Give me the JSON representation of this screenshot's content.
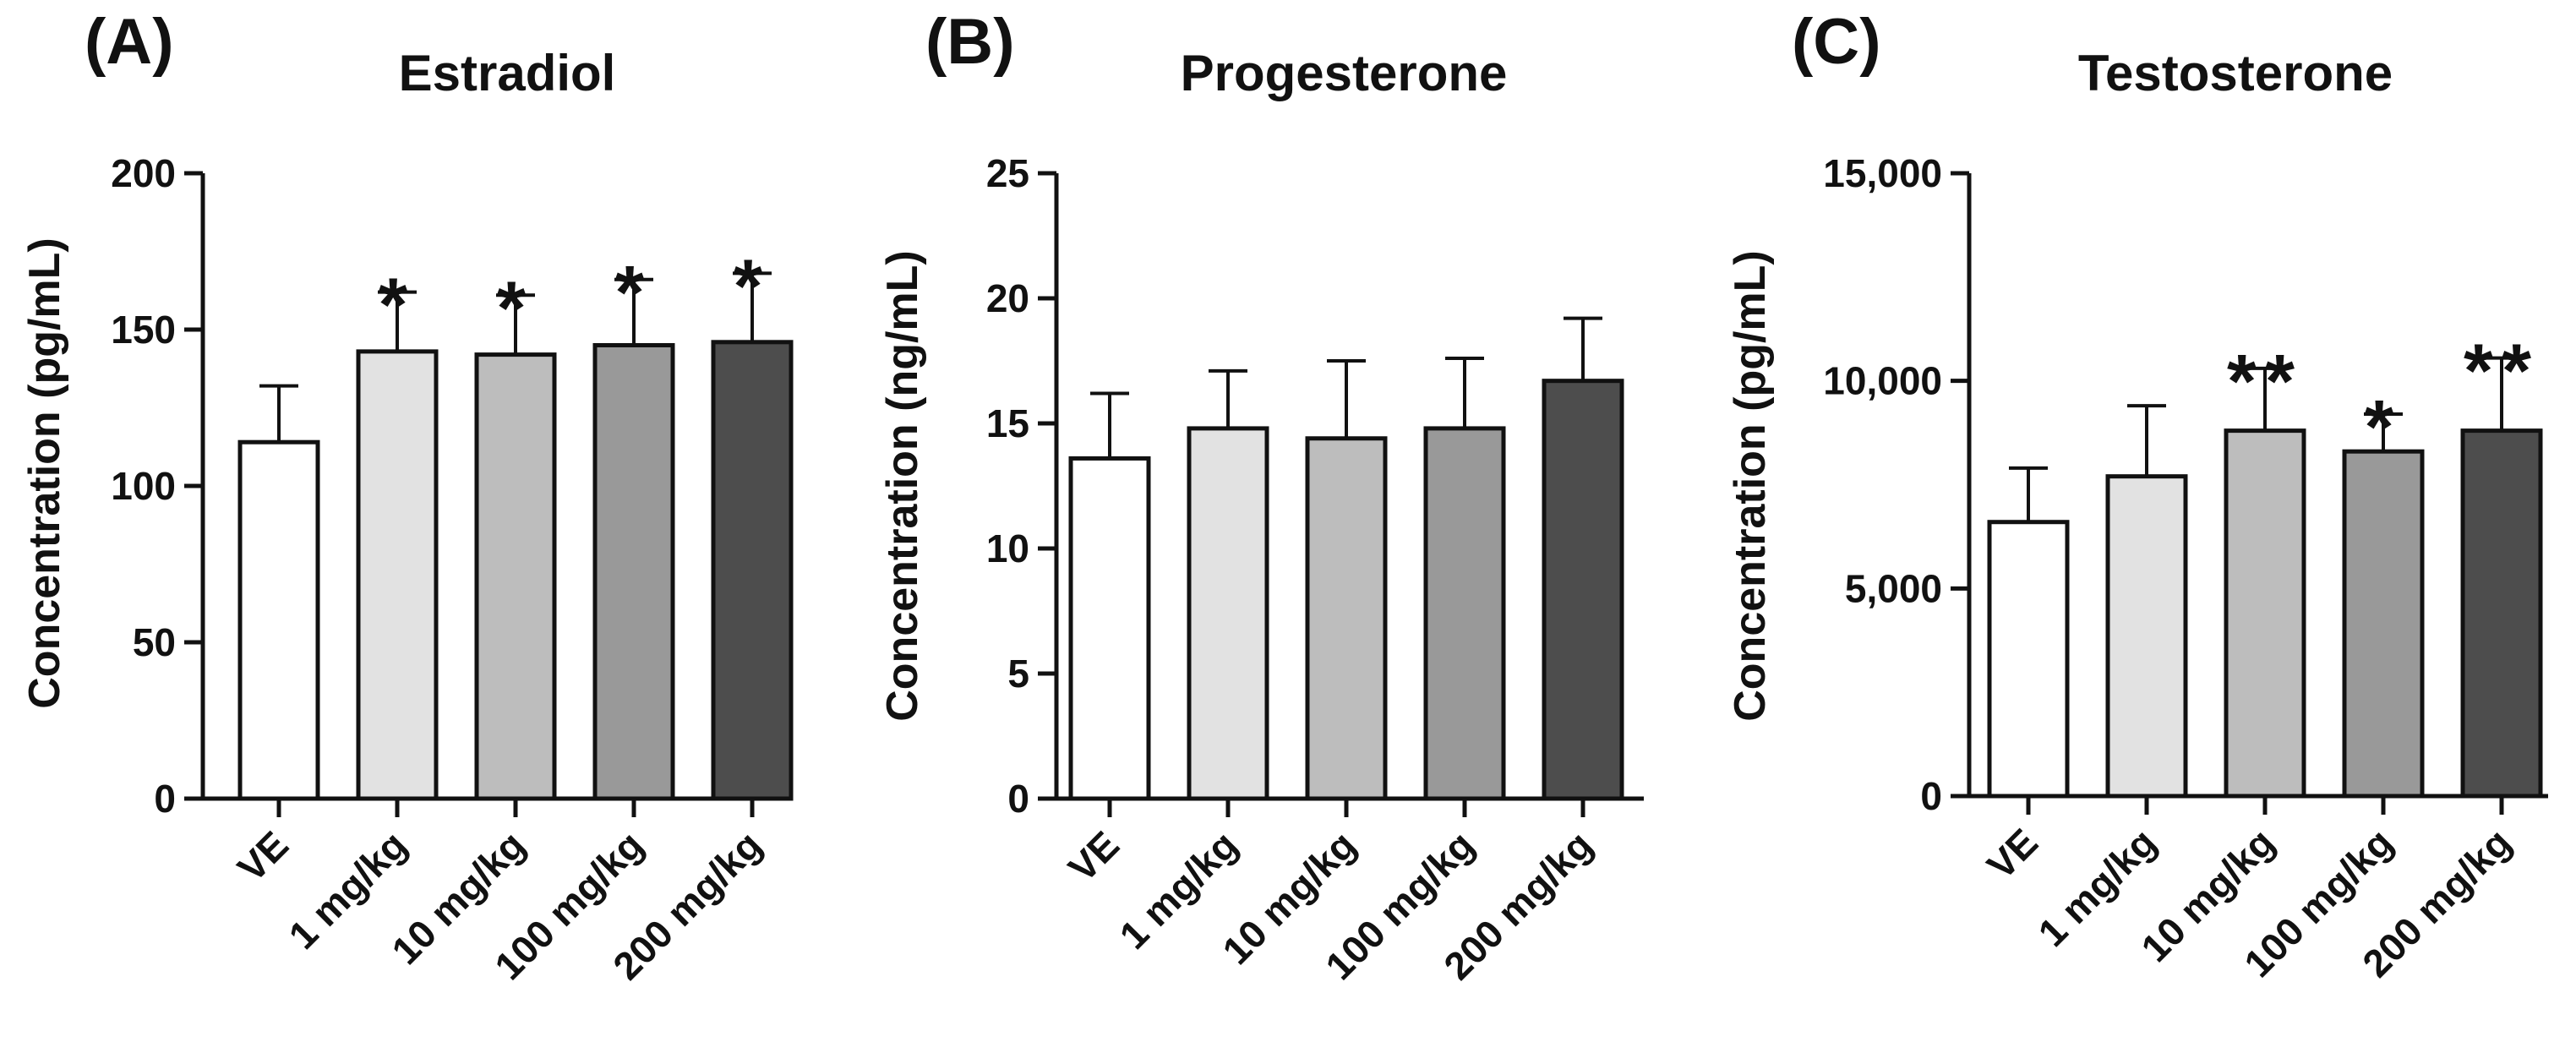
{
  "chart_data": [
    {
      "type": "bar",
      "panel": "(A)",
      "title": "Estradiol",
      "xlabel": "",
      "ylabel": "Concentration (pg/mL)",
      "ylim": [
        0,
        200
      ],
      "yticks": [
        0,
        50,
        100,
        150,
        200
      ],
      "ytick_labels": [
        "0",
        "50",
        "100",
        "150",
        "200"
      ],
      "categories": [
        "VE",
        "1 mg/kg",
        "10 mg/kg",
        "100 mg/kg",
        "200 mg/kg"
      ],
      "values": [
        114,
        143,
        142,
        145,
        146
      ],
      "errors": [
        18,
        19,
        19,
        21,
        22
      ],
      "significance": [
        "",
        "*",
        "*",
        "*",
        "*"
      ],
      "colors": [
        "#ffffff",
        "#e2e2e2",
        "#bdbdbd",
        "#999999",
        "#4d4d4d"
      ]
    },
    {
      "type": "bar",
      "panel": "(B)",
      "title": "Progesterone",
      "xlabel": "",
      "ylabel": "Concentration (ng/mL)",
      "ylim": [
        0,
        25
      ],
      "yticks": [
        0,
        5,
        10,
        15,
        20,
        25
      ],
      "ytick_labels": [
        "0",
        "5",
        "10",
        "15",
        "20",
        "25"
      ],
      "categories": [
        "VE",
        "1 mg/kg",
        "10 mg/kg",
        "100 mg/kg",
        "200 mg/kg"
      ],
      "values": [
        13.6,
        14.8,
        14.4,
        14.8,
        16.7
      ],
      "errors": [
        2.6,
        2.3,
        3.1,
        2.8,
        2.5
      ],
      "significance": [
        "",
        "",
        "",
        "",
        ""
      ],
      "colors": [
        "#ffffff",
        "#e2e2e2",
        "#bdbdbd",
        "#999999",
        "#4d4d4d"
      ]
    },
    {
      "type": "bar",
      "panel": "(C)",
      "title": "Testosterone",
      "xlabel": "",
      "ylabel": "Concentration (pg/mL)",
      "ylim": [
        0,
        15000
      ],
      "yticks": [
        0,
        5000,
        10000,
        15000
      ],
      "ytick_labels": [
        "0",
        "5,000",
        "10,000",
        "15,000"
      ],
      "categories": [
        "VE",
        "1 mg/kg",
        "10 mg/kg",
        "100 mg/kg",
        "200 mg/kg"
      ],
      "values": [
        6600,
        7700,
        8800,
        8300,
        8800
      ],
      "errors": [
        1300,
        1700,
        1500,
        900,
        1750
      ],
      "significance": [
        "",
        "",
        "**",
        "*",
        "**"
      ],
      "colors": [
        "#ffffff",
        "#e2e2e2",
        "#bdbdbd",
        "#999999",
        "#4d4d4d"
      ]
    }
  ]
}
